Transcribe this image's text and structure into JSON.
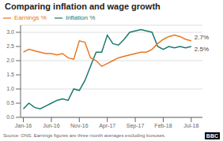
{
  "chart_data": {
    "type": "line",
    "title": "Comparing inflation and wage growth",
    "source": "Source: ONS. Earnings figures are three month averages excluding bonuses.",
    "credit": "BBC",
    "x": [
      0,
      1,
      2,
      3,
      4,
      5,
      6,
      7,
      8,
      9,
      10,
      11,
      12,
      13,
      14,
      15,
      16,
      17,
      18,
      19,
      20,
      21,
      22,
      23,
      24,
      25,
      26,
      27,
      28,
      29,
      30
    ],
    "series": [
      {
        "name": "Inflation %",
        "color": "#1a7a6e",
        "values": [
          0.3,
          0.5,
          0.35,
          0.3,
          0.4,
          0.5,
          0.6,
          0.65,
          0.6,
          1.0,
          0.95,
          1.3,
          1.8,
          2.3,
          2.3,
          2.9,
          2.6,
          2.55,
          2.75,
          3.0,
          3.05,
          3.1,
          3.05,
          3.0,
          2.5,
          2.4,
          2.5,
          2.45,
          2.5,
          2.45,
          2.5
        ]
      },
      {
        "name": "Earnings %",
        "color": "#e87722",
        "values": [
          2.3,
          2.4,
          2.35,
          2.3,
          2.25,
          2.25,
          2.2,
          2.25,
          2.1,
          2.05,
          2.7,
          2.65,
          2.1,
          2.0,
          1.8,
          1.9,
          2.0,
          2.1,
          2.15,
          2.2,
          2.25,
          2.3,
          2.3,
          2.4,
          2.6,
          2.75,
          2.85,
          2.9,
          2.85,
          2.75,
          2.7
        ]
      }
    ],
    "annotations": [
      {
        "text": "2.7%",
        "series": "Earnings %"
      },
      {
        "text": "2.5%",
        "series": "Inflation %"
      }
    ],
    "xlim": [
      -0.5,
      32
    ],
    "xticks": [
      {
        "value": 0,
        "label": "Jan-16"
      },
      {
        "value": 5,
        "label": "Jun-16"
      },
      {
        "value": 10,
        "label": "Nov-16"
      },
      {
        "value": 15,
        "label": "Apr-17"
      },
      {
        "value": 20,
        "label": "Sep-17"
      },
      {
        "value": 25,
        "label": "Feb-18"
      },
      {
        "value": 30,
        "label": "Jul-18"
      }
    ],
    "ylim": [
      0,
      3.25
    ],
    "yticks": [
      {
        "value": 0,
        "label": "0.0"
      },
      0.5,
      {
        "value": 1.0,
        "label": "1.0"
      },
      1.5,
      {
        "value": 2.0,
        "label": "2.0"
      },
      2.5,
      {
        "value": 3.0,
        "label": "3.0"
      }
    ],
    "grid": "y",
    "legend": "top-left"
  }
}
